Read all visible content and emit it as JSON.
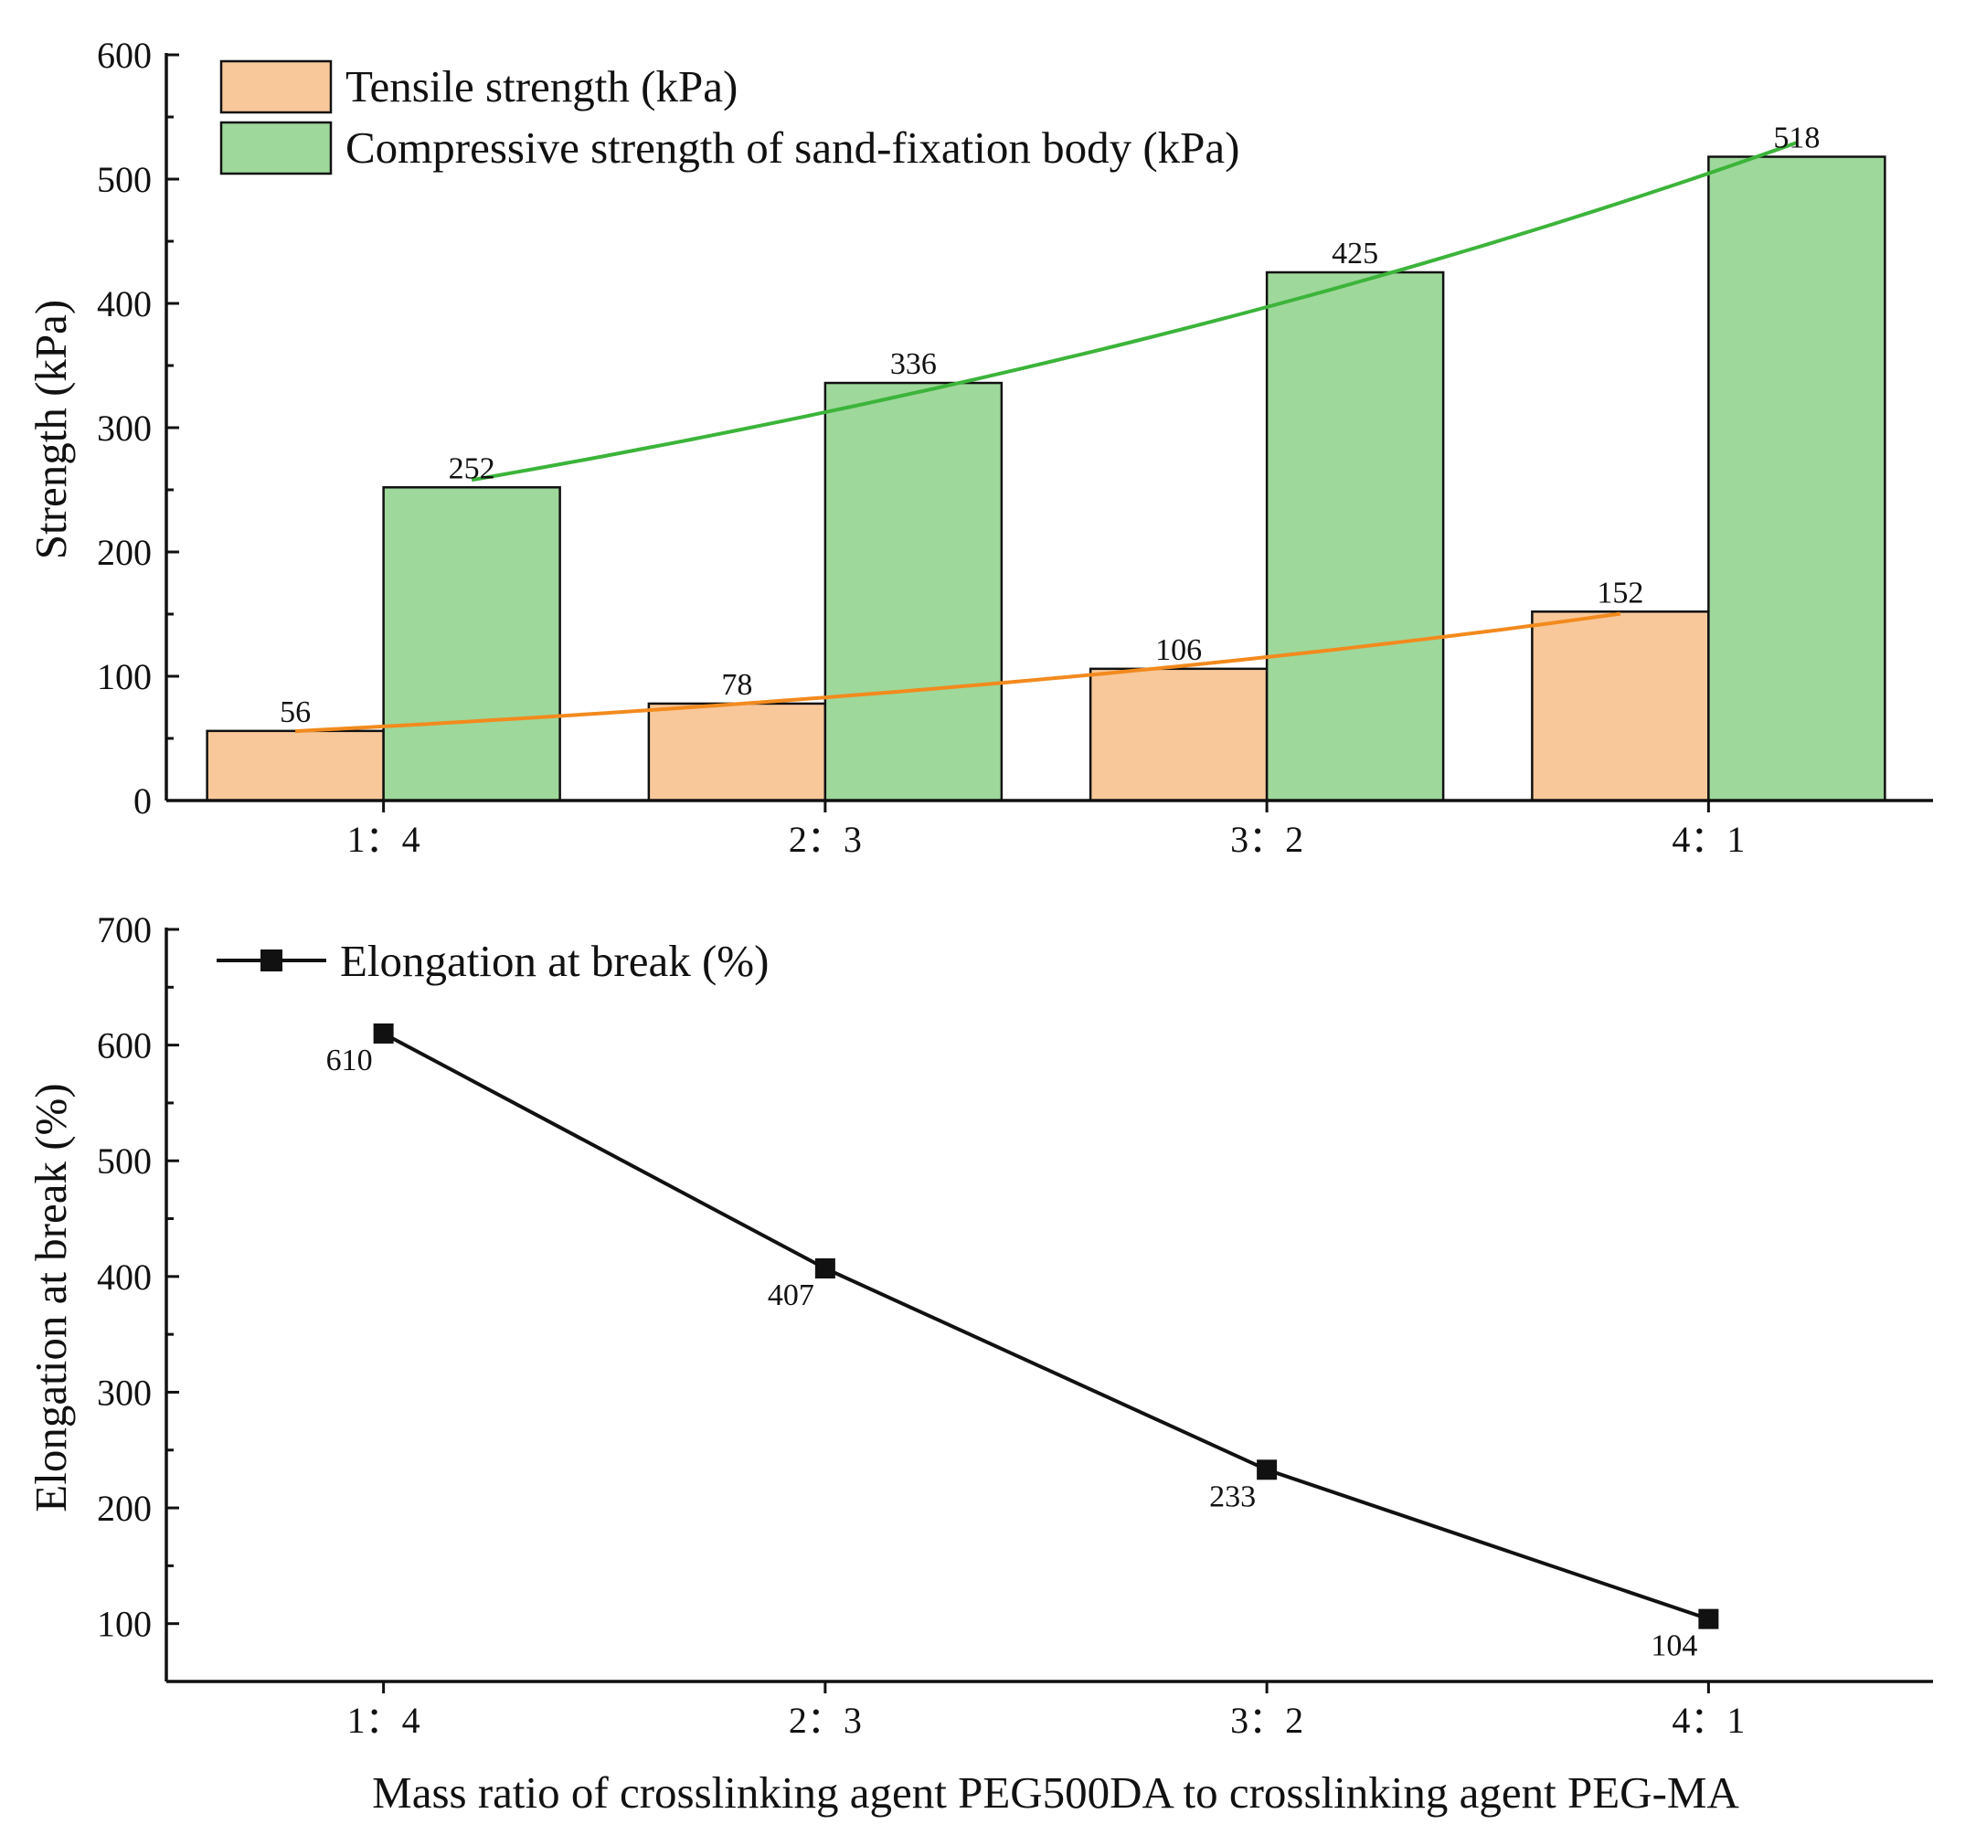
{
  "chart_data": [
    {
      "type": "bar",
      "categories": [
        "1：4",
        "2：3",
        "3：2",
        "4：1"
      ],
      "ylabel": "Strength (kPa)",
      "xlabel": "",
      "ylim": [
        0,
        600
      ],
      "yticks": [
        0,
        100,
        200,
        300,
        400,
        500,
        600
      ],
      "series": [
        {
          "name": "Tensile strength (kPa)",
          "values": [
            56,
            78,
            106,
            152
          ],
          "color": "#F9C89A",
          "trend_color": "#F28A1E"
        },
        {
          "name": "Compressive strength of sand-fixation body (kPa)",
          "values": [
            252,
            336,
            425,
            518
          ],
          "color": "#9ED89B",
          "trend_color": "#3CB43A"
        }
      ],
      "legend": "top-left"
    },
    {
      "type": "line",
      "categories": [
        "1：4",
        "2：3",
        "3：2",
        "4：1"
      ],
      "ylabel": "Elongation at break (%)",
      "xlabel": "Mass ratio of crosslinking agent PEG500DA to crosslinking agent PEG-MA",
      "ylim": [
        50,
        700
      ],
      "yticks": [
        100,
        200,
        300,
        400,
        500,
        600,
        700
      ],
      "series": [
        {
          "name": "Elongation at break (%)",
          "values": [
            610,
            407,
            233,
            104
          ],
          "color": "#111111",
          "marker": "square"
        }
      ],
      "legend": "top-left"
    }
  ]
}
